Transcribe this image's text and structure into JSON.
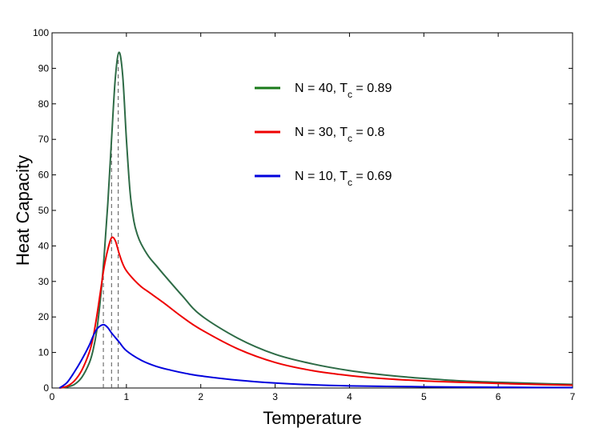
{
  "chart_data": {
    "type": "line",
    "title": "",
    "xlabel": "Temperature",
    "ylabel": "Heat Capacity",
    "xlim": [
      0,
      7
    ],
    "ylim": [
      0,
      100
    ],
    "xticks": [
      0,
      1,
      2,
      3,
      4,
      5,
      6,
      7
    ],
    "yticks": [
      0,
      10,
      20,
      30,
      40,
      50,
      60,
      70,
      80,
      90,
      100
    ],
    "grid": false,
    "legend_position": "top-center",
    "series": [
      {
        "name": "N = 40, T_c = 0.89",
        "legend_main": "N = 40, T",
        "legend_sub": "c",
        "legend_tail": " = 0.89",
        "color": "#2e6b46",
        "legend_color": "#1a7a1a",
        "Tc": 0.89,
        "x": [
          0.1,
          0.2,
          0.3,
          0.4,
          0.5,
          0.55,
          0.6,
          0.65,
          0.7,
          0.75,
          0.8,
          0.85,
          0.9,
          0.95,
          1.0,
          1.05,
          1.1,
          1.15,
          1.2,
          1.3,
          1.4,
          1.5,
          1.75,
          2.0,
          2.5,
          3.0,
          3.5,
          4.0,
          4.5,
          5.0,
          5.5,
          6.0,
          6.5,
          7.0
        ],
        "y": [
          0,
          0.3,
          1,
          3,
          7,
          10.5,
          16,
          25,
          37,
          52,
          70,
          87,
          94.5,
          88,
          70,
          55,
          47,
          43,
          40.5,
          37,
          34.5,
          32,
          26,
          20.5,
          14,
          9.5,
          6.8,
          4.9,
          3.6,
          2.7,
          2.0,
          1.6,
          1.3,
          1.0
        ]
      },
      {
        "name": "N = 30, T_c = 0.8",
        "legend_main": "N = 30, T",
        "legend_sub": "c",
        "legend_tail": " = 0.8",
        "color": "#ee0000",
        "legend_color": "#ee0000",
        "Tc": 0.8,
        "x": [
          0.1,
          0.2,
          0.3,
          0.4,
          0.5,
          0.55,
          0.6,
          0.65,
          0.7,
          0.75,
          0.8,
          0.85,
          0.9,
          0.95,
          1.0,
          1.1,
          1.2,
          1.3,
          1.5,
          1.75,
          2.0,
          2.5,
          3.0,
          3.5,
          4.0,
          4.5,
          5.0,
          5.5,
          6.0,
          6.5,
          7.0
        ],
        "y": [
          0,
          0.5,
          2,
          5,
          10,
          14,
          20,
          27,
          34,
          39,
          42.3,
          41.5,
          38,
          35,
          33,
          30.5,
          28.5,
          27,
          24,
          20,
          16.5,
          11,
          7.2,
          4.9,
          3.5,
          2.6,
          2.0,
          1.6,
          1.3,
          1.0,
          0.8
        ]
      },
      {
        "name": "N = 10, T_c = 0.69",
        "legend_main": "N = 10, T",
        "legend_sub": "c",
        "legend_tail": " = 0.69",
        "color": "#0000dd",
        "legend_color": "#0000dd",
        "Tc": 0.69,
        "x": [
          0.1,
          0.2,
          0.3,
          0.4,
          0.5,
          0.55,
          0.6,
          0.65,
          0.7,
          0.75,
          0.8,
          0.9,
          1.0,
          1.2,
          1.4,
          1.6,
          1.8,
          2.0,
          2.5,
          3.0,
          3.5,
          4.0,
          4.5,
          5.0,
          5.5,
          6.0,
          6.5,
          7.0
        ],
        "y": [
          0,
          1.5,
          4.5,
          8,
          12,
          14.5,
          16.5,
          17.5,
          17.8,
          17,
          15.5,
          13,
          10.5,
          7.8,
          6.1,
          5.0,
          4.1,
          3.4,
          2.2,
          1.4,
          0.9,
          0.6,
          0.45,
          0.35,
          0.25,
          0.2,
          0.15,
          0.1
        ]
      }
    ]
  }
}
